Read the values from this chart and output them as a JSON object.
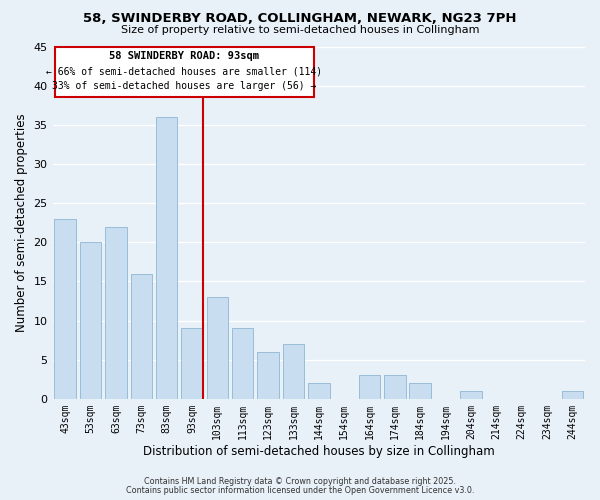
{
  "title": "58, SWINDERBY ROAD, COLLINGHAM, NEWARK, NG23 7PH",
  "subtitle": "Size of property relative to semi-detached houses in Collingham",
  "xlabel": "Distribution of semi-detached houses by size in Collingham",
  "ylabel": "Number of semi-detached properties",
  "bar_labels": [
    "43sqm",
    "53sqm",
    "63sqm",
    "73sqm",
    "83sqm",
    "93sqm",
    "103sqm",
    "113sqm",
    "123sqm",
    "133sqm",
    "144sqm",
    "154sqm",
    "164sqm",
    "174sqm",
    "184sqm",
    "194sqm",
    "204sqm",
    "214sqm",
    "224sqm",
    "234sqm",
    "244sqm"
  ],
  "bar_values": [
    23,
    20,
    22,
    16,
    36,
    9,
    13,
    9,
    6,
    7,
    2,
    0,
    3,
    3,
    2,
    0,
    1,
    0,
    0,
    0,
    1
  ],
  "bar_color": "#c8ddf0",
  "bar_edge_color": "#9abdd8",
  "subject_bar_index": 5,
  "subject_line_color": "#cc0000",
  "annotation_title": "58 SWINDERBY ROAD: 93sqm",
  "annotation_line1": "← 66% of semi-detached houses are smaller (114)",
  "annotation_line2": "33% of semi-detached houses are larger (56) →",
  "annotation_box_color": "#ffffff",
  "annotation_box_edge": "#cc0000",
  "ylim": [
    0,
    45
  ],
  "yticks": [
    0,
    5,
    10,
    15,
    20,
    25,
    30,
    35,
    40,
    45
  ],
  "background_color": "#e8f0f8",
  "grid_color": "#ffffff",
  "footer1": "Contains HM Land Registry data © Crown copyright and database right 2025.",
  "footer2": "Contains public sector information licensed under the Open Government Licence v3.0."
}
